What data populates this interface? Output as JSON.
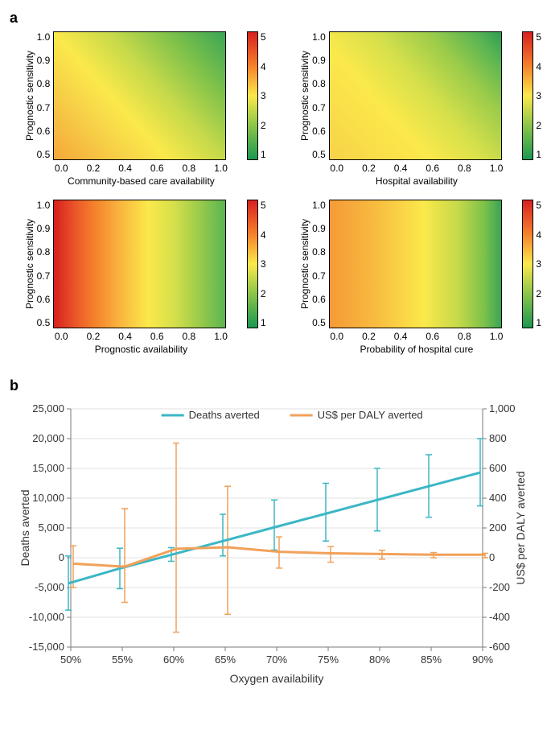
{
  "panel_a": {
    "label": "a",
    "y_label": "Prognostic sensitivity",
    "y_ticks": [
      "1.0",
      "0.9",
      "0.8",
      "0.7",
      "0.6",
      "0.5"
    ],
    "x_ticks": [
      "0.0",
      "0.2",
      "0.4",
      "0.6",
      "0.8",
      "1.0"
    ],
    "colorbar_ticks": [
      "5",
      "4",
      "3",
      "2",
      "1"
    ],
    "colorbar_gradient": [
      "#d7201f",
      "#f47b2a",
      "#fbe94b",
      "#84c24a",
      "#1a9850"
    ],
    "heatmaps": [
      {
        "x_label": "Community-based care availability",
        "gradient_stops": [
          {
            "pos": "0% 100%",
            "color": "#f5a73a"
          },
          {
            "pos": "50% 50%",
            "color": "#fbe94b"
          },
          {
            "pos": "100% 0%",
            "color": "#3aa555"
          }
        ],
        "css_bg": "linear-gradient(48deg, #f5a73a 0%, #f7d248 25%, #fbe94b 40%, #c5d94a 60%, #7dc14a 80%, #3aa555 100%)"
      },
      {
        "x_label": "Hospital availability",
        "gradient_stops": [],
        "css_bg": "linear-gradient(48deg, #f7d248 0%, #fbe94b 35%, #d6e04b 55%, #9acb4a 75%, #5ab552 90%, #2f9e53 100%)"
      },
      {
        "x_label": "Prognostic availability",
        "gradient_stops": [],
        "css_bg": "linear-gradient(90deg, #d7201f 0%, #e9542a 12%, #f47b2a 22%, #f9b33e 38%, #fbe94b 55%, #d6e04b 70%, #9acb4a 85%, #5ab552 100%)"
      },
      {
        "x_label": "Probability of hospital cure",
        "gradient_stops": [],
        "css_bg": "linear-gradient(90deg, #f59a36 0%, #f8b93f 25%, #fbe94b 55%, #c5d94a 75%, #7dc14a 90%, #3aa555 100%)"
      }
    ]
  },
  "panel_b": {
    "label": "b",
    "x_label": "Oxygen availability",
    "y1_label": "Deaths averted",
    "y2_label": "US$ per DALY averted",
    "legend": {
      "deaths": "Deaths averted",
      "daly": "US$ per DALY averted"
    },
    "colors": {
      "deaths_line": "#3bb7c4",
      "daly_line": "#f1a15a",
      "axis": "#7a7a7a",
      "grid": "#e0e0e0",
      "text": "#333333",
      "bg": "#ffffff"
    },
    "x_ticks": [
      "50%",
      "55%",
      "60%",
      "65%",
      "70%",
      "75%",
      "80%",
      "85%",
      "90%"
    ],
    "y1_ticks": [
      -15000,
      -10000,
      -5000,
      0,
      5000,
      10000,
      15000,
      20000,
      25000
    ],
    "y1_tick_labels": [
      "-15,000",
      "-10,000",
      "-5,000",
      "0",
      "5,000",
      "10,000",
      "15,000",
      "20,000",
      "25,000"
    ],
    "y2_ticks": [
      -600,
      -400,
      -200,
      0,
      200,
      400,
      600,
      800,
      1000
    ],
    "y2_tick_labels": [
      "-600",
      "-400",
      "-200",
      "0",
      "200",
      "400",
      "600",
      "800",
      "1,000"
    ],
    "y1_lim": [
      -15000,
      25000
    ],
    "y2_lim": [
      -600,
      1000
    ],
    "deaths_series": {
      "y": [
        -4300,
        -1800,
        500,
        2800,
        5100,
        7400,
        9700,
        12000,
        14300
      ],
      "err_low": [
        -8800,
        -5200,
        -600,
        300,
        1300,
        2800,
        4500,
        6800,
        8700
      ],
      "err_high": [
        300,
        1600,
        1700,
        7300,
        9700,
        12500,
        15000,
        17300,
        20000
      ]
    },
    "daly_series": {
      "y": [
        -40,
        -60,
        60,
        70,
        40,
        30,
        25,
        20,
        20
      ],
      "err_low": [
        -200,
        -300,
        -500,
        -380,
        -70,
        -30,
        -10,
        0,
        0
      ],
      "err_high": [
        80,
        330,
        770,
        480,
        140,
        75,
        50,
        35,
        30
      ]
    },
    "line_width": 3,
    "err_bar_width": 8,
    "font_size_axis": 13,
    "font_size_label": 14
  }
}
